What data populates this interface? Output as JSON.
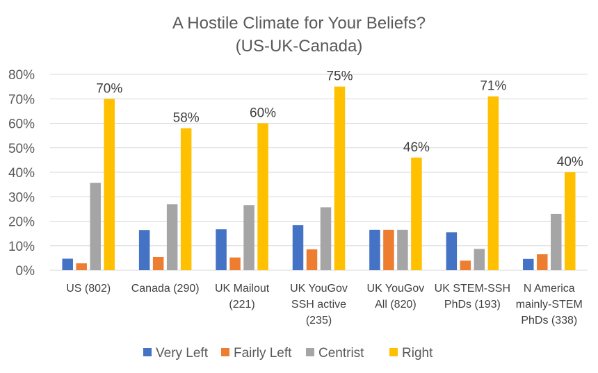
{
  "chart_data": {
    "type": "bar",
    "title": "A Hostile Climate for Your Beliefs?",
    "subtitle": "(US-UK-Canada)",
    "xlabel": "",
    "ylabel": "",
    "ylim": [
      0,
      80
    ],
    "yticks": [
      "0%",
      "10%",
      "20%",
      "30%",
      "40%",
      "50%",
      "60%",
      "70%",
      "80%"
    ],
    "grid": true,
    "legend_position": "bottom",
    "categories": [
      [
        "US (802)"
      ],
      [
        "Canada (290)"
      ],
      [
        "UK Mailout",
        "(221)"
      ],
      [
        "UK YouGov",
        "SSH active",
        "(235)"
      ],
      [
        "UK YouGov",
        "All (820)"
      ],
      [
        "UK STEM-SSH",
        "PhDs (193)"
      ],
      [
        "N America",
        "mainly-STEM",
        "PhDs (338)"
      ]
    ],
    "series": [
      {
        "name": "Very Left",
        "color": "#4472C4",
        "values": [
          4.7,
          16.4,
          16.7,
          18.4,
          16.5,
          15.5,
          4.6
        ]
      },
      {
        "name": "Fairly Left",
        "color": "#ED7D31",
        "values": [
          2.8,
          5.4,
          5.2,
          8.5,
          16.5,
          3.9,
          6.5
        ]
      },
      {
        "name": "Centrist",
        "color": "#A5A5A5",
        "values": [
          35.7,
          26.9,
          26.6,
          25.7,
          16.5,
          8.7,
          23.0
        ]
      },
      {
        "name": "Right",
        "color": "#FFC000",
        "values": [
          70,
          58,
          60,
          75,
          46,
          71,
          40
        ],
        "data_labels": [
          "70%",
          "58%",
          "60%",
          "75%",
          "46%",
          "71%",
          "40%"
        ]
      }
    ]
  }
}
